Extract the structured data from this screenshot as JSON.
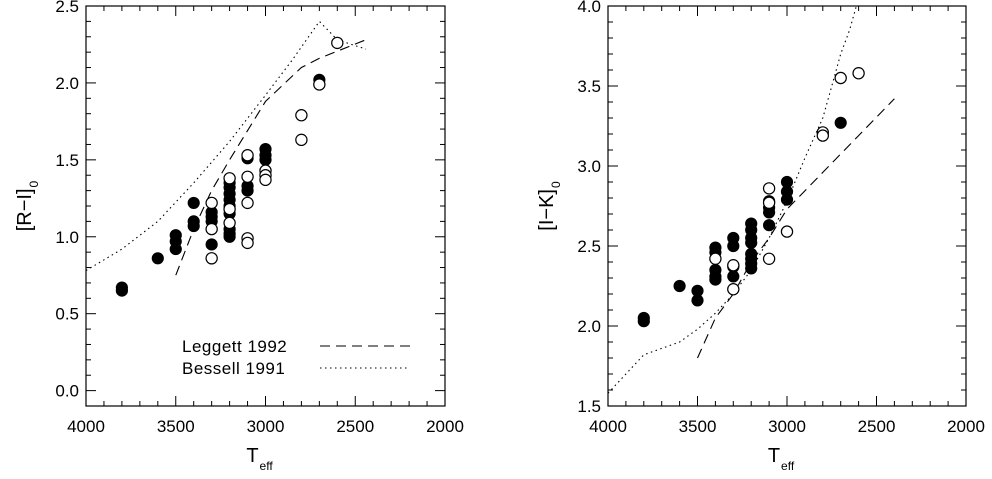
{
  "chart_data": [
    {
      "type": "scatter",
      "xlabel": "T",
      "xlabel_sub": "eff",
      "ylabel": "[R−I]",
      "ylabel_sub": "0",
      "xlim": [
        4000,
        2000
      ],
      "ylim": [
        -0.1,
        2.5
      ],
      "xticks": [
        4000,
        3500,
        3000,
        2500,
        2000
      ],
      "xtick_labels": [
        "4000",
        "3500",
        "3000",
        "2500",
        "2000"
      ],
      "yticks": [
        0.0,
        0.5,
        1.0,
        1.5,
        2.0,
        2.5
      ],
      "ytick_labels": [
        "0.0",
        "0.5",
        "1.0",
        "1.5",
        "2.0",
        "2.5"
      ],
      "grid": false,
      "legend_position": "bottom-right",
      "series": [
        {
          "name": "Leggett 1992",
          "style": "dashed",
          "x": [
            3500,
            3400,
            3300,
            3200,
            3000,
            2800,
            2700,
            2420
          ],
          "y": [
            0.75,
            1.05,
            1.3,
            1.5,
            1.88,
            2.1,
            2.16,
            2.29
          ]
        },
        {
          "name": "Bessell 1991",
          "style": "dotted",
          "x": [
            4000,
            3800,
            3600,
            3400,
            3200,
            3000,
            2850,
            2700,
            2600,
            2440
          ],
          "y": [
            0.78,
            0.92,
            1.1,
            1.35,
            1.62,
            1.92,
            2.15,
            2.4,
            2.28,
            2.22
          ]
        }
      ],
      "filled_points": {
        "x": [
          3800,
          3800,
          3600,
          3500,
          3500,
          3500,
          3400,
          3400,
          3400,
          3300,
          3300,
          3300,
          3300,
          3200,
          3200,
          3200,
          3200,
          3200,
          3200,
          3200,
          3200,
          3200,
          3100,
          3100,
          3100,
          3000,
          3000,
          3000,
          2700
        ],
        "y": [
          0.67,
          0.65,
          0.86,
          1.01,
          0.97,
          0.92,
          1.22,
          1.1,
          1.07,
          1.16,
          1.13,
          1.1,
          0.95,
          1.35,
          1.32,
          1.28,
          1.24,
          1.2,
          1.15,
          1.05,
          1.02,
          1.0,
          1.51,
          1.33,
          1.3,
          1.57,
          1.53,
          1.5,
          2.02
        ]
      },
      "open_points": {
        "x": [
          3300,
          3300,
          3300,
          3200,
          3200,
          3200,
          3100,
          3100,
          3100,
          3100,
          3100,
          3000,
          3000,
          3000,
          2800,
          2800,
          2700,
          2600
        ],
        "y": [
          1.22,
          1.05,
          0.86,
          1.38,
          1.18,
          1.09,
          1.53,
          1.39,
          1.22,
          0.99,
          0.96,
          1.43,
          1.4,
          1.37,
          1.79,
          1.63,
          1.99,
          2.26
        ]
      }
    },
    {
      "type": "scatter",
      "xlabel": "T",
      "xlabel_sub": "eff",
      "ylabel": "[I−K]",
      "ylabel_sub": "0",
      "xlim": [
        4000,
        2000
      ],
      "ylim": [
        1.5,
        4.0
      ],
      "xticks": [
        4000,
        3500,
        3000,
        2500,
        2000
      ],
      "xtick_labels": [
        "4000",
        "3500",
        "3000",
        "2500",
        "2000"
      ],
      "yticks": [
        1.5,
        2.0,
        2.5,
        3.0,
        3.5,
        4.0
      ],
      "ytick_labels": [
        "1.5",
        "2.0",
        "2.5",
        "3.0",
        "3.5",
        "4.0"
      ],
      "grid": false,
      "series": [
        {
          "name": "Leggett 1992",
          "style": "dashed",
          "x": [
            3500,
            3400,
            3300,
            3200,
            3100,
            3000,
            2800,
            2600,
            2400
          ],
          "y": [
            1.8,
            2.05,
            2.2,
            2.4,
            2.55,
            2.73,
            2.96,
            3.19,
            3.42
          ]
        },
        {
          "name": "Bessell 1991",
          "style": "dotted",
          "x": [
            4000,
            3800,
            3600,
            3500,
            3400,
            3300,
            3200,
            3100,
            3000,
            2900,
            2800,
            2750,
            2700,
            2650,
            2600
          ],
          "y": [
            1.58,
            1.82,
            1.9,
            1.98,
            2.08,
            2.2,
            2.35,
            2.55,
            2.78,
            3.05,
            3.3,
            3.5,
            3.7,
            3.85,
            4.05
          ]
        }
      ],
      "filled_points": {
        "x": [
          3800,
          3800,
          3600,
          3500,
          3500,
          3400,
          3400,
          3400,
          3400,
          3400,
          3300,
          3300,
          3300,
          3300,
          3200,
          3200,
          3200,
          3200,
          3200,
          3200,
          3200,
          3200,
          3100,
          3100,
          3100,
          3100,
          3000,
          3000,
          3000,
          2700
        ],
        "y": [
          2.05,
          2.03,
          2.25,
          2.22,
          2.16,
          2.49,
          2.46,
          2.35,
          2.31,
          2.29,
          2.55,
          2.5,
          2.37,
          2.31,
          2.64,
          2.6,
          2.55,
          2.52,
          2.45,
          2.42,
          2.39,
          2.36,
          2.78,
          2.74,
          2.71,
          2.63,
          2.9,
          2.84,
          2.79,
          3.27
        ]
      },
      "open_points": {
        "x": [
          3400,
          3300,
          3300,
          3100,
          3100,
          3100,
          3000,
          2800,
          2800,
          2700,
          2600
        ],
        "y": [
          2.42,
          2.38,
          2.23,
          2.86,
          2.77,
          2.42,
          2.59,
          3.21,
          3.19,
          3.55,
          3.58
        ]
      }
    }
  ]
}
